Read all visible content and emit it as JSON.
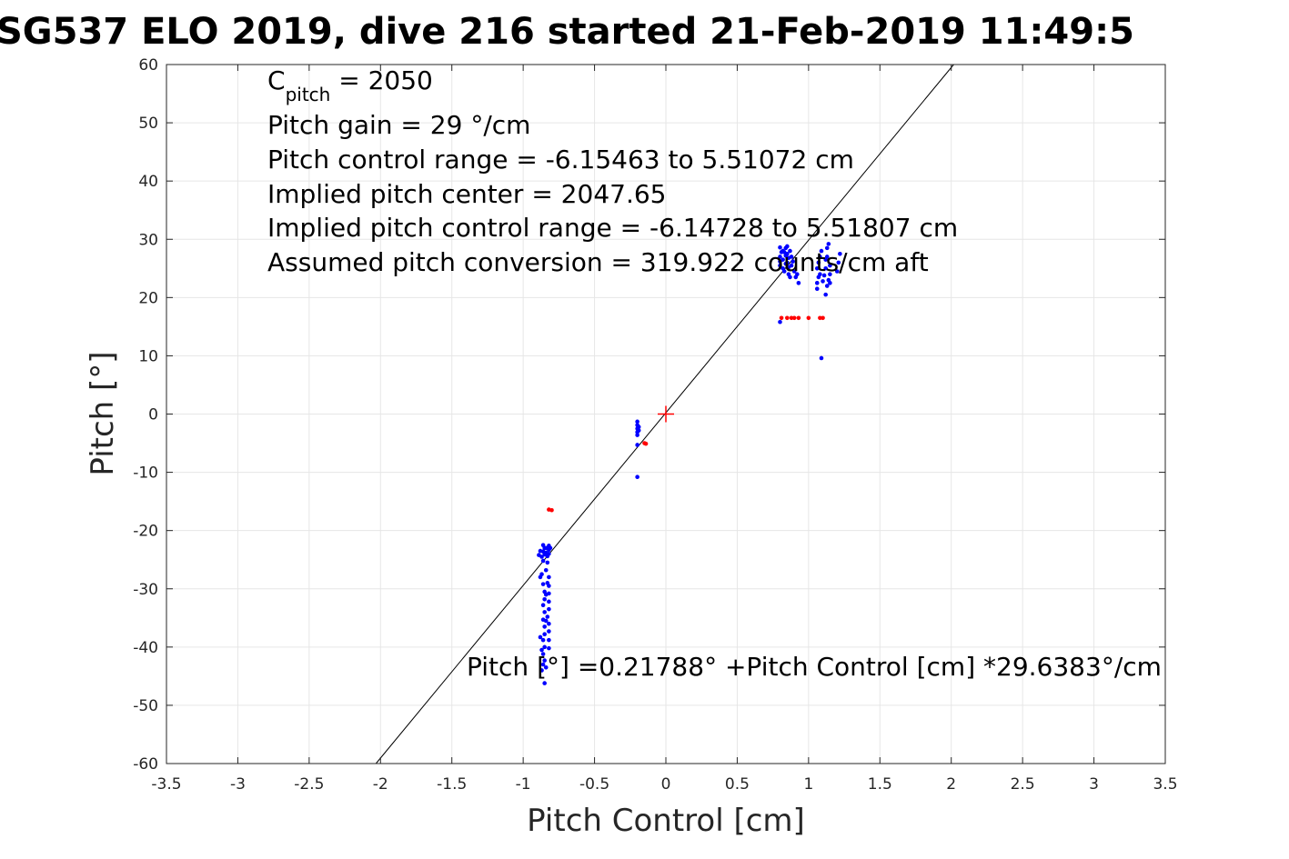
{
  "chart_data": {
    "type": "scatter",
    "title": "SG537 ELO 2019, dive 216 started 21-Feb-2019 11:49:5",
    "xlabel": "Pitch Control [cm]",
    "ylabel": "Pitch [°]",
    "xlim": [
      -3.5,
      3.5
    ],
    "ylim": [
      -60,
      60
    ],
    "xticks": [
      -3.5,
      -3,
      -2.5,
      -2,
      -1.5,
      -1,
      -0.5,
      0,
      0.5,
      1,
      1.5,
      2,
      2.5,
      3,
      3.5
    ],
    "xtick_labels": [
      "-3.5",
      "-3",
      "-2.5",
      "-2",
      "-1.5",
      "-1",
      "-0.5",
      "0",
      "0.5",
      "1",
      "1.5",
      "2",
      "2.5",
      "3",
      "3.5"
    ],
    "yticks": [
      -60,
      -50,
      -40,
      -30,
      -20,
      -10,
      0,
      10,
      20,
      30,
      40,
      50,
      60
    ],
    "ytick_labels": [
      "-60",
      "-50",
      "-40",
      "-30",
      "-20",
      "-10",
      "0",
      "10",
      "20",
      "30",
      "40",
      "50",
      "60"
    ],
    "grid": true,
    "annotations": {
      "c_pitch": {
        "main": "C",
        "sub": "pitch",
        "rest": " = 2050"
      },
      "lines": [
        "Pitch gain = 29 °/cm",
        "Pitch control range = -6.15463 to 5.51072 cm",
        "Implied pitch center = 2047.65",
        "Implied pitch control range = -6.14728 to 5.51807 cm",
        "Assumed pitch conversion = 319.922 counts/cm aft"
      ],
      "fit_equation": "Pitch [°] =0.21788° +Pitch Control [cm] *29.6383°/cm"
    },
    "fit_line": {
      "intercept": 0.21788,
      "slope": 29.6383,
      "color": "#000000"
    },
    "center_marker": {
      "x": 0,
      "y": 0,
      "color": "#ff0000",
      "marker": "plus"
    },
    "series": [
      {
        "color": "#0000ff",
        "points": [
          [
            -0.86,
            -22.5
          ],
          [
            -0.85,
            -23.0
          ],
          [
            -0.86,
            -23.6
          ],
          [
            -0.85,
            -24.1
          ],
          [
            -0.87,
            -24.5
          ],
          [
            -0.86,
            -25.2
          ],
          [
            -0.84,
            -23.0
          ],
          [
            -0.84,
            -23.8
          ],
          [
            -0.83,
            -24.4
          ],
          [
            -0.82,
            -22.6
          ],
          [
            -0.82,
            -23.3
          ],
          [
            -0.82,
            -24.0
          ],
          [
            -0.81,
            -23.0
          ],
          [
            -0.83,
            -25.5
          ],
          [
            -0.84,
            -26.8
          ],
          [
            -0.88,
            -23.5
          ],
          [
            -0.89,
            -24.2
          ],
          [
            -0.87,
            -27.5
          ],
          [
            -0.88,
            -28.0
          ],
          [
            -0.86,
            -29.2
          ],
          [
            -0.85,
            -30.5
          ],
          [
            -0.85,
            -31.8
          ],
          [
            -0.86,
            -32.8
          ],
          [
            -0.85,
            -34.0
          ],
          [
            -0.86,
            -35.3
          ],
          [
            -0.85,
            -36.5
          ],
          [
            -0.85,
            -37.8
          ],
          [
            -0.86,
            -38.8
          ],
          [
            -0.85,
            -40.0
          ],
          [
            -0.86,
            -41.2
          ],
          [
            -0.85,
            -42.3
          ],
          [
            -0.84,
            -43.5
          ],
          [
            -0.85,
            -46.2
          ],
          [
            -0.82,
            -28.0
          ],
          [
            -0.82,
            -29.5
          ],
          [
            -0.82,
            -30.8
          ],
          [
            -0.82,
            -32.2
          ],
          [
            -0.82,
            -33.5
          ],
          [
            -0.83,
            -34.8
          ],
          [
            -0.82,
            -36.0
          ],
          [
            -0.82,
            -37.3
          ],
          [
            -0.82,
            -38.8
          ],
          [
            -0.82,
            -40.2
          ],
          [
            -0.83,
            -29.0
          ],
          [
            -0.84,
            -31.0
          ],
          [
            -0.88,
            -38.3
          ],
          [
            -0.87,
            -40.5
          ],
          [
            -0.86,
            -43.0
          ],
          [
            -0.87,
            -44.0
          ],
          [
            -0.84,
            -35.5
          ],
          [
            -0.2,
            -1.3
          ],
          [
            -0.2,
            -1.9
          ],
          [
            -0.2,
            -2.5
          ],
          [
            -0.2,
            -3.1
          ],
          [
            -0.2,
            -3.6
          ],
          [
            -0.19,
            -2.2
          ],
          [
            -0.19,
            -2.8
          ],
          [
            -0.2,
            -5.3
          ],
          [
            -0.2,
            -10.8
          ],
          [
            0.8,
            25.5
          ],
          [
            0.8,
            26.2
          ],
          [
            0.8,
            27.0
          ],
          [
            0.81,
            27.8
          ],
          [
            0.8,
            28.6
          ],
          [
            0.82,
            25.0
          ],
          [
            0.82,
            26.5
          ],
          [
            0.82,
            28.0
          ],
          [
            0.83,
            24.5
          ],
          [
            0.84,
            25.8
          ],
          [
            0.84,
            27.2
          ],
          [
            0.84,
            28.5
          ],
          [
            0.85,
            26.0
          ],
          [
            0.85,
            27.5
          ],
          [
            0.86,
            24.0
          ],
          [
            0.86,
            25.2
          ],
          [
            0.86,
            26.8
          ],
          [
            0.87,
            23.5
          ],
          [
            0.87,
            28.0
          ],
          [
            0.88,
            25.5
          ],
          [
            0.88,
            27.0
          ],
          [
            0.89,
            26.2
          ],
          [
            0.9,
            24.5
          ],
          [
            0.91,
            23.5
          ],
          [
            0.92,
            24.0
          ],
          [
            0.93,
            22.5
          ],
          [
            0.83,
            27.8
          ],
          [
            0.85,
            28.8
          ],
          [
            0.8,
            15.8
          ],
          [
            1.06,
            21.5
          ],
          [
            1.06,
            22.5
          ],
          [
            1.07,
            23.5
          ],
          [
            1.06,
            25.0
          ],
          [
            1.07,
            26.0
          ],
          [
            1.08,
            27.0
          ],
          [
            1.09,
            28.0
          ],
          [
            1.08,
            24.0
          ],
          [
            1.1,
            22.8
          ],
          [
            1.11,
            23.8
          ],
          [
            1.12,
            25.0
          ],
          [
            1.12,
            26.5
          ],
          [
            1.13,
            28.5
          ],
          [
            1.14,
            29.2
          ],
          [
            1.14,
            23.0
          ],
          [
            1.15,
            22.5
          ],
          [
            1.15,
            24.0
          ],
          [
            1.15,
            25.5
          ],
          [
            1.12,
            20.5
          ],
          [
            1.13,
            22.0
          ],
          [
            1.13,
            27.0
          ],
          [
            1.2,
            24.5
          ],
          [
            1.21,
            26.0
          ],
          [
            1.22,
            27.5
          ],
          [
            1.09,
            9.6
          ]
        ]
      },
      {
        "color": "#ff0000",
        "points": [
          [
            -0.82,
            -16.4
          ],
          [
            -0.8,
            -16.5
          ],
          [
            -0.15,
            -5.0
          ],
          [
            -0.14,
            -5.1
          ],
          [
            0.81,
            16.5
          ],
          [
            0.85,
            16.5
          ],
          [
            0.88,
            16.5
          ],
          [
            0.9,
            16.5
          ],
          [
            0.93,
            16.5
          ],
          [
            1.0,
            16.5
          ],
          [
            1.08,
            16.5
          ],
          [
            1.1,
            16.5
          ]
        ]
      }
    ]
  }
}
